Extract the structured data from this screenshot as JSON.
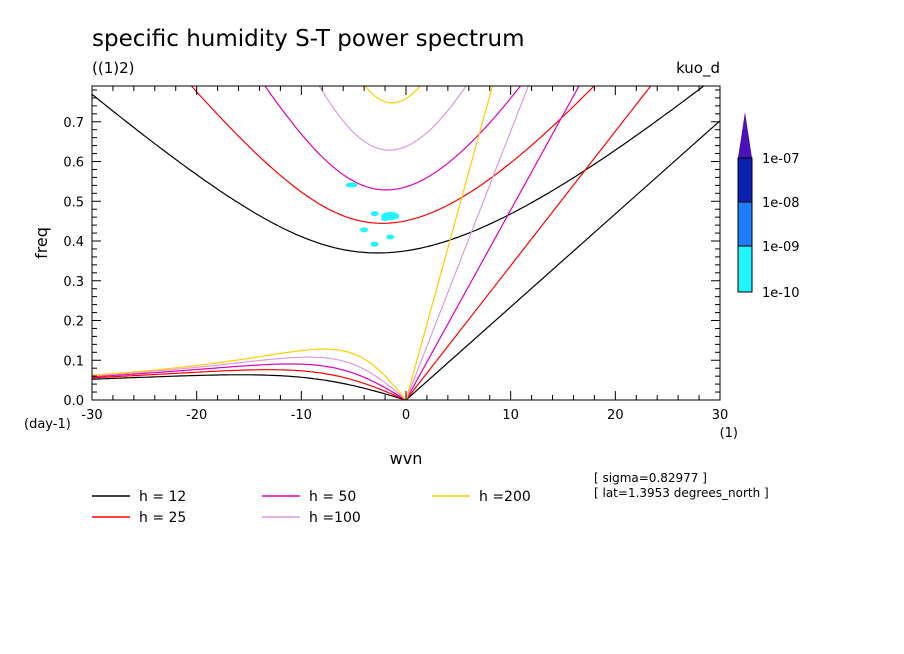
{
  "title": "specific humidity S-T power spectrum",
  "subtitle_left": "((1)2)",
  "subtitle_right": "kuo_d",
  "info_lines": [
    "[ sigma=0.82977 ]",
    "[ lat=1.3953 degrees_north ]"
  ],
  "colorbar": {
    "labels": [
      "1e-07",
      "1e-08",
      "1e-09",
      "1e-10"
    ],
    "colors": [
      "#4a12b8",
      "#0a22b4",
      "#1f7cff",
      "#20f4ff"
    ]
  },
  "colors": {
    "h12": "#000000",
    "h25": "#ff0000",
    "h50": "#dd00bb",
    "h100": "#dd99dd",
    "h200": "#ffcc00",
    "spectrum": "#20f4ff"
  },
  "chart_data": {
    "type": "line",
    "xlabel": "wvn",
    "ylabel": "freq",
    "x_unit": "(1)",
    "y_unit": "(day-1)",
    "xlim": [
      -30,
      30
    ],
    "ylim": [
      0,
      0.79
    ],
    "x_ticks": [
      "-30",
      "-20",
      "-10",
      "0",
      "10",
      "20",
      "30"
    ],
    "y_ticks": [
      "0.0",
      "0.1",
      "0.2",
      "0.3",
      "0.4",
      "0.5",
      "0.6",
      "0.7"
    ],
    "series": [
      {
        "name": "h = 12",
        "h": 12,
        "color": "#000000"
      },
      {
        "name": "h = 25",
        "h": 25,
        "color": "#ff0000"
      },
      {
        "name": "h = 50",
        "h": 50,
        "color": "#dd00bb"
      },
      {
        "name": "h =100",
        "h": 100,
        "color": "#dd99dd"
      },
      {
        "name": "h =200",
        "h": 200,
        "color": "#ffcc00"
      }
    ],
    "spectrum_patches": [
      {
        "x": -5.2,
        "y": 0.541
      },
      {
        "x": -1.5,
        "y": 0.463
      },
      {
        "x": -3.0,
        "y": 0.469
      },
      {
        "x": -4.0,
        "y": 0.428
      },
      {
        "x": -3.0,
        "y": 0.392
      },
      {
        "x": -1.5,
        "y": 0.41
      },
      {
        "x": -2.0,
        "y": 0.456
      }
    ]
  }
}
